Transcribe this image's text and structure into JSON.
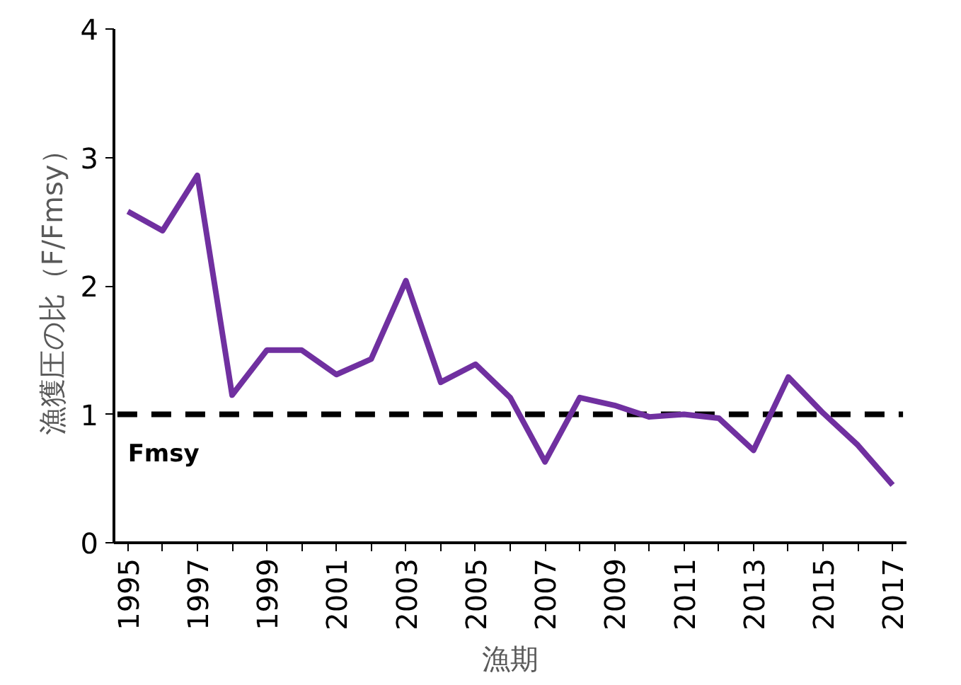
{
  "chart_data": {
    "type": "line",
    "xlabel": "漁期",
    "ylabel": "漁獲圧の比（F/Fmsy）",
    "x": [
      1995,
      1996,
      1997,
      1998,
      1999,
      2000,
      2001,
      2002,
      2003,
      2004,
      2005,
      2006,
      2007,
      2008,
      2009,
      2010,
      2011,
      2012,
      2013,
      2014,
      2015,
      2016,
      2017
    ],
    "series": [
      {
        "color": "#7030a0",
        "values": [
          2.58,
          2.43,
          2.86,
          1.15,
          1.5,
          1.5,
          1.31,
          1.43,
          2.04,
          1.25,
          1.39,
          1.13,
          0.63,
          1.13,
          1.07,
          0.98,
          1.0,
          0.97,
          0.72,
          1.29,
          1.01,
          0.76,
          0.45
        ]
      }
    ],
    "xlim": [
      1994.6,
      2017.4
    ],
    "ylim": [
      0,
      4
    ],
    "yticks": [
      0,
      1,
      2,
      3,
      4
    ],
    "xticks": [
      1995,
      {
        "value": 1996,
        "label": null
      },
      1997,
      {
        "value": 1998,
        "label": null
      },
      1999,
      {
        "value": 2000,
        "label": null
      },
      2001,
      {
        "value": 2002,
        "label": null
      },
      2003,
      {
        "value": 2004,
        "label": null
      },
      2005,
      {
        "value": 2006,
        "label": null
      },
      2007,
      {
        "value": 2008,
        "label": null
      },
      2009,
      {
        "value": 2010,
        "label": null
      },
      2011,
      {
        "value": 2012,
        "label": null
      },
      2013,
      {
        "value": 2014,
        "label": null
      },
      2015,
      {
        "value": 2016,
        "label": null
      },
      2017
    ],
    "ref_lines": [
      {
        "axis": "y",
        "value": 1,
        "label": "Fmsy",
        "color": "#000000",
        "line_style": "dashed"
      }
    ],
    "grid": false,
    "marker": "none",
    "line_style": "solid"
  }
}
